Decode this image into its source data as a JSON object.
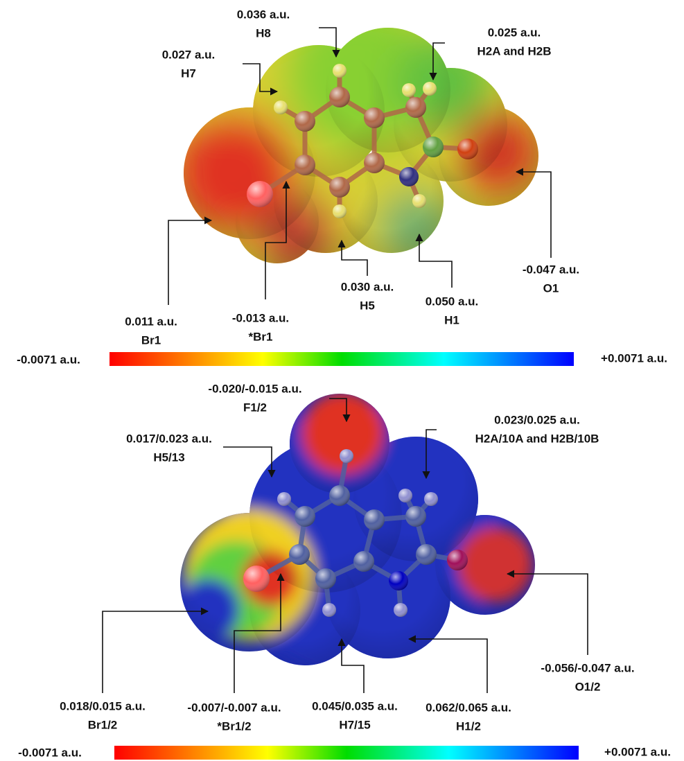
{
  "panels": [
    {
      "annotations": [
        {
          "value": "0.036 a.u.",
          "atom": "H8"
        },
        {
          "value": "0.027 a.u.",
          "atom": "H7"
        },
        {
          "value": "0.025 a.u.",
          "atom": "H2A and H2B"
        },
        {
          "value": "0.011 a.u.",
          "atom": "Br1"
        },
        {
          "value": "-0.013 a.u.",
          "atom": "*Br1"
        },
        {
          "value": "0.030 a.u.",
          "atom": "H5"
        },
        {
          "value": "0.050 a.u.",
          "atom": "H1"
        },
        {
          "value": "-0.047 a.u.",
          "atom": "O1"
        }
      ],
      "colorbar": {
        "min_label": "-0.0071 a.u.",
        "max_label": "+0.0071 a.u."
      }
    },
    {
      "annotations": [
        {
          "value": "-0.020/-0.015 a.u.",
          "atom": "F1/2"
        },
        {
          "value": "0.017/0.023 a.u.",
          "atom": "H5/13"
        },
        {
          "value": "0.023/0.025 a.u.",
          "atom": "H2A/10A and H2B/10B"
        },
        {
          "value": "0.018/0.015 a.u.",
          "atom": "Br1/2"
        },
        {
          "value": "-0.007/-0.007 a.u.",
          "atom": "*Br1/2"
        },
        {
          "value": "0.045/0.035 a.u.",
          "atom": "H7/15"
        },
        {
          "value": "0.062/0.065 a.u.",
          "atom": "H1/2"
        },
        {
          "value": "-0.056/-0.047 a.u.",
          "atom": "O1/2"
        }
      ],
      "colorbar": {
        "min_label": "-0.0071 a.u.",
        "max_label": "+0.0071 a.u."
      }
    }
  ]
}
